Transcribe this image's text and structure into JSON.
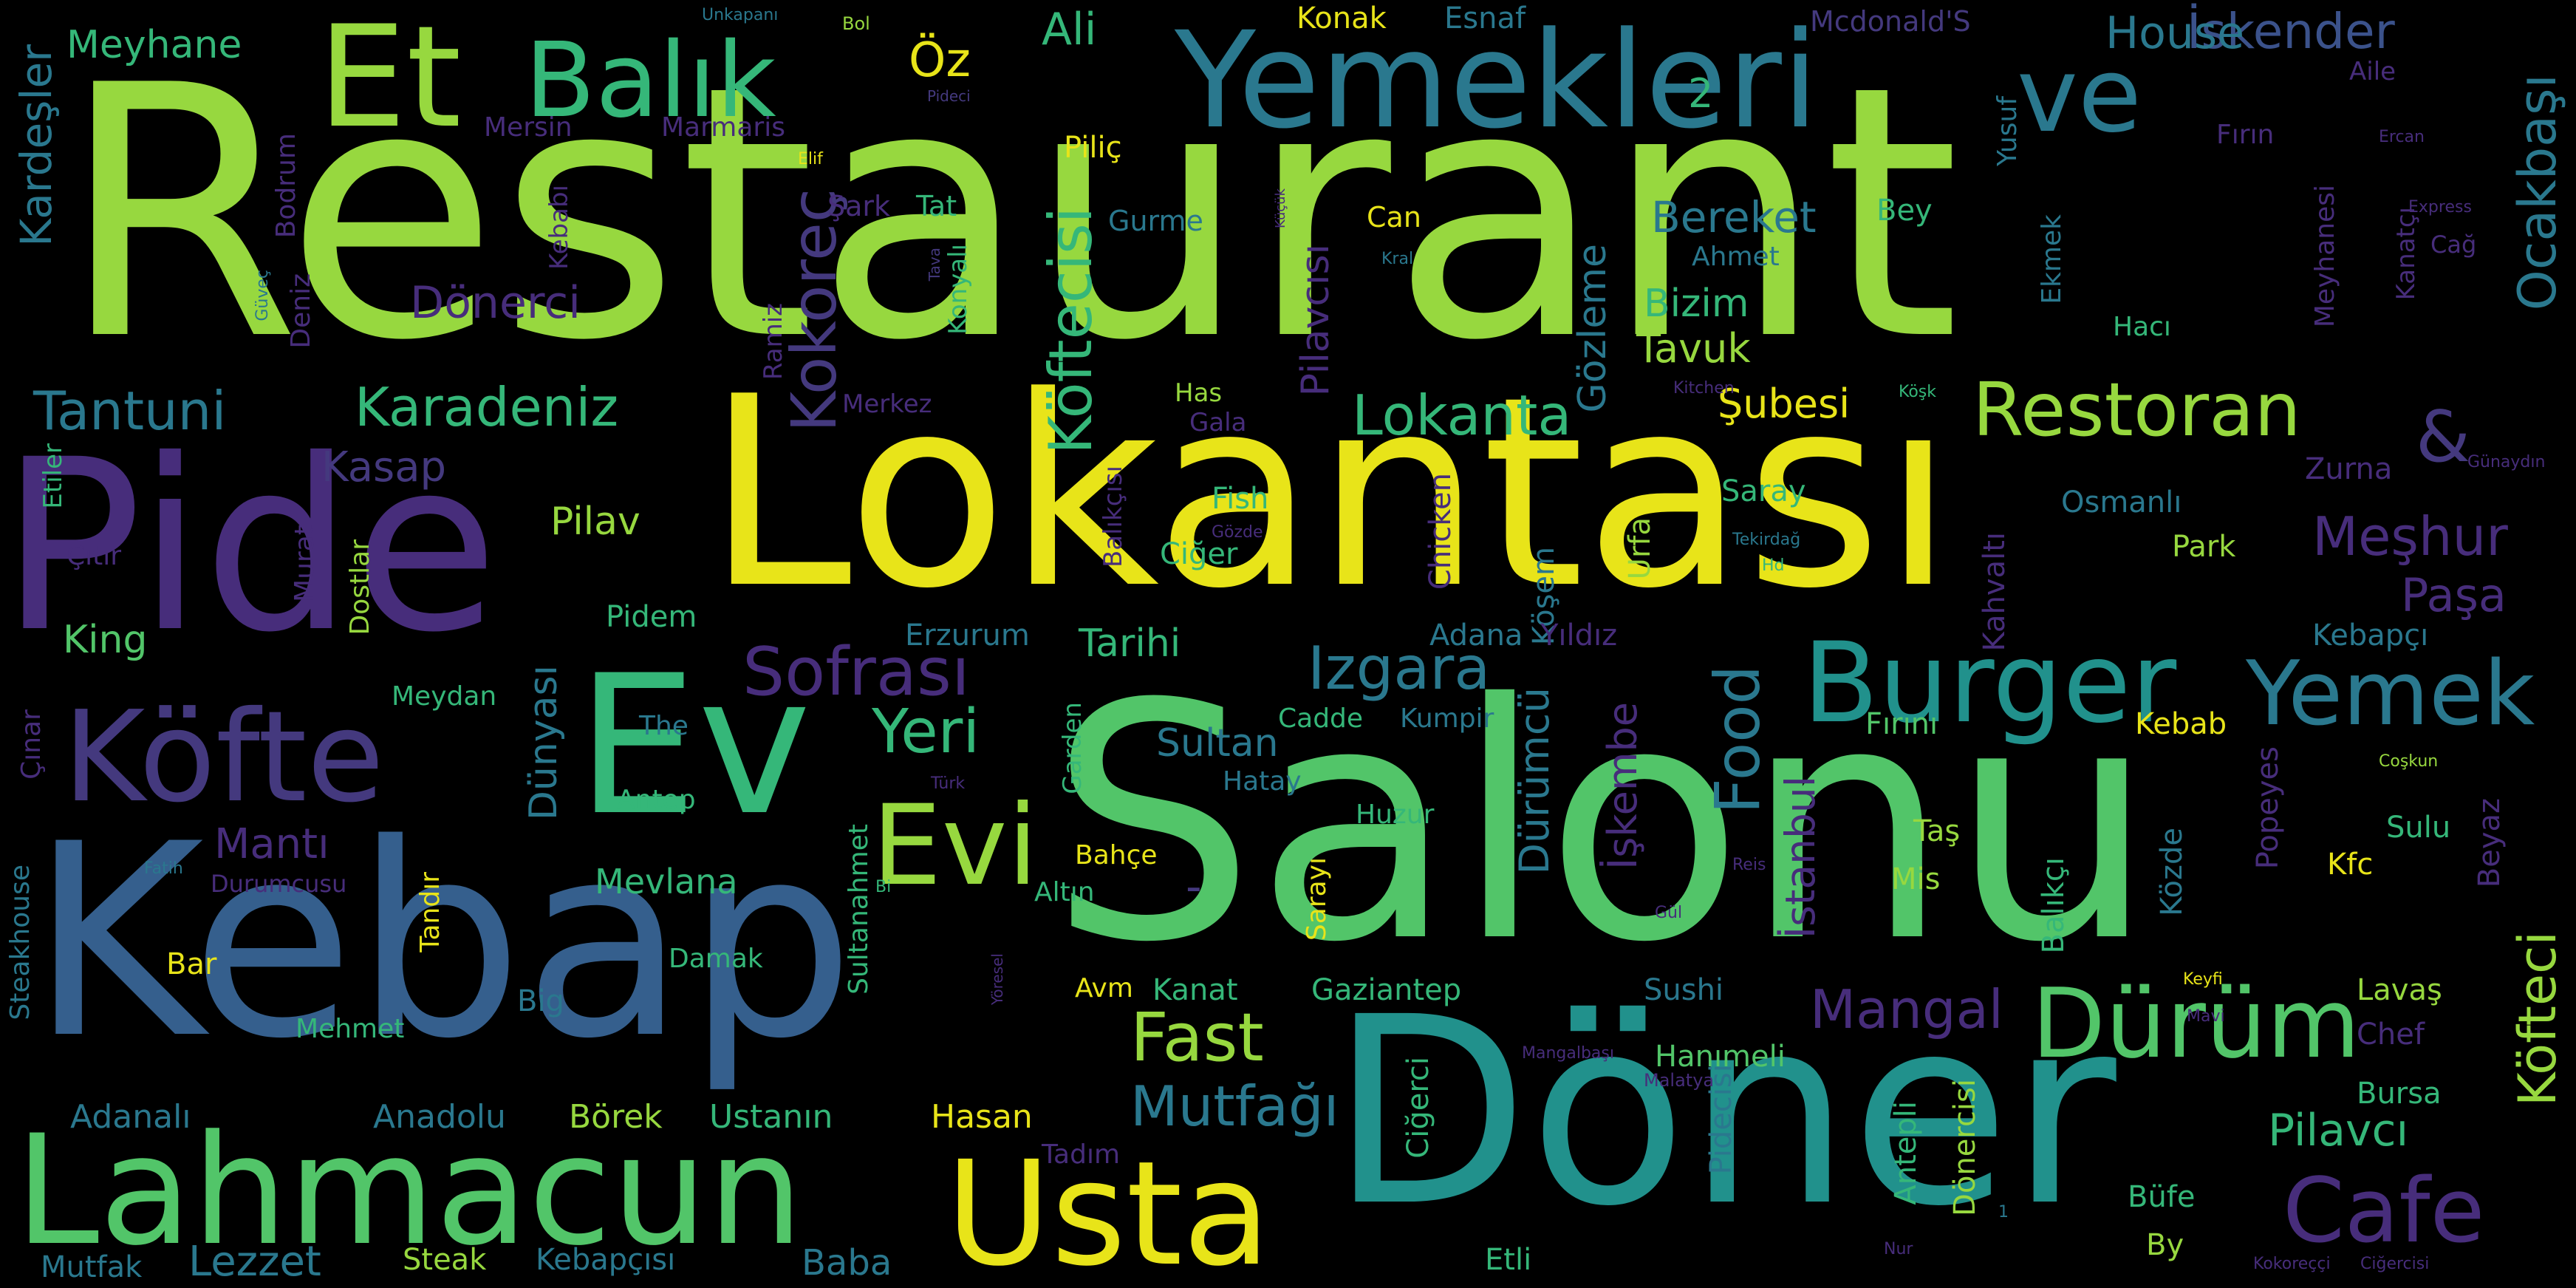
{
  "palette": {
    "background": "#000000",
    "lime": "#97d83f",
    "green": "#52c569",
    "yellow": "#e8e419",
    "teal": "#2a788e",
    "blue": "#355f8d",
    "purple": "#472d7b",
    "violet": "#44397e",
    "cyan": "#21918c",
    "mint": "#35b779",
    "indigo": "#3b528b"
  },
  "words": [
    {
      "text": "Restaurant"
    },
    {
      "text": "Lokantası"
    },
    {
      "text": "Salonu"
    },
    {
      "text": "Kebap"
    },
    {
      "text": "Döner"
    },
    {
      "text": "Pide"
    },
    {
      "text": "Yemekleri"
    },
    {
      "text": "Lahmacun"
    },
    {
      "text": "Usta"
    },
    {
      "text": "Köfte"
    },
    {
      "text": "Ev"
    },
    {
      "text": "Et"
    },
    {
      "text": "Balık"
    },
    {
      "text": "ve"
    },
    {
      "text": "Burger"
    },
    {
      "text": "Evi"
    },
    {
      "text": "Dürüm"
    },
    {
      "text": "Yemek"
    },
    {
      "text": "Cafe"
    },
    {
      "text": "Restoran"
    },
    {
      "text": "Sofrası"
    },
    {
      "text": "Fast"
    },
    {
      "text": "Mutfağı"
    },
    {
      "text": "Lokanta"
    },
    {
      "text": "Karadeniz"
    },
    {
      "text": "Tantuni"
    },
    {
      "text": "Izgara"
    },
    {
      "text": "Yeri"
    },
    {
      "text": "Mangal"
    },
    {
      "text": "Food"
    },
    {
      "text": "Köftecisi"
    },
    {
      "text": "Kokoreç"
    },
    {
      "text": "Ocakbaşı"
    },
    {
      "text": "Köfteci"
    },
    {
      "text": "Meşhur"
    },
    {
      "text": "Paşa"
    },
    {
      "text": "Pilavcı"
    },
    {
      "text": "Lezzet"
    },
    {
      "text": "İskender"
    },
    {
      "text": "House"
    },
    {
      "text": "Meyhane"
    },
    {
      "text": "Öz"
    },
    {
      "text": "Ali"
    },
    {
      "text": "Kardeşler"
    },
    {
      "text": "Dönerci"
    },
    {
      "text": "Bereket"
    },
    {
      "text": "Bizim"
    },
    {
      "text": "Tavuk"
    },
    {
      "text": "Şubesi"
    },
    {
      "text": "Gözleme"
    },
    {
      "text": "Pilavcısı"
    },
    {
      "text": "Dürümcü"
    },
    {
      "text": "İşkembe"
    },
    {
      "text": "İstanbul"
    },
    {
      "text": "Kasap"
    },
    {
      "text": "Pilav"
    },
    {
      "text": "King"
    },
    {
      "text": "Tarihi"
    },
    {
      "text": "Sultan"
    },
    {
      "text": "Mantı"
    },
    {
      "text": "Dünyası"
    },
    {
      "text": "Mevlana"
    },
    {
      "text": "Ustanın"
    },
    {
      "text": "Börek"
    },
    {
      "text": "Anadolu"
    },
    {
      "text": "Adanalı"
    },
    {
      "text": "Baba"
    },
    {
      "text": "Kebapçısı"
    },
    {
      "text": "Steak"
    },
    {
      "text": "Mutfak"
    },
    {
      "text": "Hasan"
    },
    {
      "text": "Kanat"
    },
    {
      "text": "Gaziantep"
    },
    {
      "text": "Sushi"
    },
    {
      "text": "Hanımeli"
    },
    {
      "text": "Pidecisi"
    },
    {
      "text": "Antepli"
    },
    {
      "text": "Dönercisi"
    },
    {
      "text": "Ciğerci"
    },
    {
      "text": "Etli"
    },
    {
      "text": "Büfe"
    },
    {
      "text": "By"
    },
    {
      "text": "Bursa"
    },
    {
      "text": "Lavaş"
    },
    {
      "text": "Chef"
    },
    {
      "text": "Kfc"
    },
    {
      "text": "Sulu"
    },
    {
      "text": "Beyaz"
    },
    {
      "text": "Popeyes"
    },
    {
      "text": "Közde"
    },
    {
      "text": "Balıkçı"
    },
    {
      "text": "Taş"
    },
    {
      "text": "Mis"
    },
    {
      "text": "Kebab"
    },
    {
      "text": "Fırını"
    },
    {
      "text": "Kebapçı"
    },
    {
      "text": "Park"
    },
    {
      "text": "Osmanlı"
    },
    {
      "text": "Zurna"
    },
    {
      "text": "Kahvaltı"
    },
    {
      "text": "Saray"
    },
    {
      "text": "Köşem"
    },
    {
      "text": "Urfa"
    },
    {
      "text": "Adana"
    },
    {
      "text": "Yıldız"
    },
    {
      "text": "Erzurum"
    },
    {
      "text": "Pidem"
    },
    {
      "text": "Ciğer"
    },
    {
      "text": "Chicken"
    },
    {
      "text": "Fish"
    },
    {
      "text": "Gala"
    },
    {
      "text": "Has"
    },
    {
      "text": "Merkez"
    },
    {
      "text": "Balıkçısı"
    },
    {
      "text": "Ramiz"
    },
    {
      "text": "Konyalı"
    },
    {
      "text": "Tat"
    },
    {
      "text": "Şark"
    },
    {
      "text": "Can"
    },
    {
      "text": "Gurme"
    },
    {
      "text": "Piliç"
    },
    {
      "text": "Konak"
    },
    {
      "text": "Esnaf"
    },
    {
      "text": "Mcdonald'S"
    },
    {
      "text": "Bey"
    },
    {
      "text": "Ahmet"
    },
    {
      "text": "Yusuf"
    },
    {
      "text": "Ekmek"
    },
    {
      "text": "Hacı"
    },
    {
      "text": "Meyhanesi"
    },
    {
      "text": "Kanatçı"
    },
    {
      "text": "Fırın"
    },
    {
      "text": "Aile"
    },
    {
      "text": "Cağ"
    },
    {
      "text": "Mersin"
    },
    {
      "text": "Marmaris"
    },
    {
      "text": "Bodrum"
    },
    {
      "text": "Kebabı"
    },
    {
      "text": "Deniz"
    },
    {
      "text": "Etiler"
    },
    {
      "text": "Çıtır"
    },
    {
      "text": "Murat"
    },
    {
      "text": "Dostlar"
    },
    {
      "text": "Meydan"
    },
    {
      "text": "The"
    },
    {
      "text": "Antep"
    },
    {
      "text": "Durumcusu"
    },
    {
      "text": "Tandır"
    },
    {
      "text": "Bar"
    },
    {
      "text": "Damak"
    },
    {
      "text": "Big"
    },
    {
      "text": "Mehmet"
    },
    {
      "text": "Steakhouse"
    },
    {
      "text": "Çınar"
    },
    {
      "text": "Sultanahmet"
    },
    {
      "text": "Avm"
    },
    {
      "text": "Altın"
    },
    {
      "text": "Bahçe"
    },
    {
      "text": "Garden"
    },
    {
      "text": "Sarayı"
    },
    {
      "text": "Huzur"
    },
    {
      "text": "Hatay"
    },
    {
      "text": "Cadde"
    },
    {
      "text": "Kumpir"
    },
    {
      "text": "Tadım"
    },
    {
      "text": "2"
    },
    {
      "text": "&"
    },
    {
      "text": "-"
    },
    {
      "text": "Unkapanı"
    },
    {
      "text": "Bol"
    },
    {
      "text": "Pideci"
    },
    {
      "text": "Elif"
    },
    {
      "text": "Güveç"
    },
    {
      "text": "Tava"
    },
    {
      "text": "Küçük"
    },
    {
      "text": "Kral"
    },
    {
      "text": "Ercan"
    },
    {
      "text": "Express"
    },
    {
      "text": "Kitchen"
    },
    {
      "text": "Köşk"
    },
    {
      "text": "Günaydın"
    },
    {
      "text": "Tekirdağ"
    },
    {
      "text": "Hd"
    },
    {
      "text": "Gözde"
    },
    {
      "text": "Türk"
    },
    {
      "text": "Coşkun"
    },
    {
      "text": "Reis"
    },
    {
      "text": "Bi"
    },
    {
      "text": "Fatih"
    },
    {
      "text": "Yöresel"
    },
    {
      "text": "Gül"
    },
    {
      "text": "Keyfi"
    },
    {
      "text": "Mavi"
    },
    {
      "text": "Mangalbaşı"
    },
    {
      "text": "Malatya"
    },
    {
      "text": "Nur"
    },
    {
      "text": "1"
    },
    {
      "text": "Kokoreççi"
    },
    {
      "text": "Ciğercisi"
    }
  ]
}
